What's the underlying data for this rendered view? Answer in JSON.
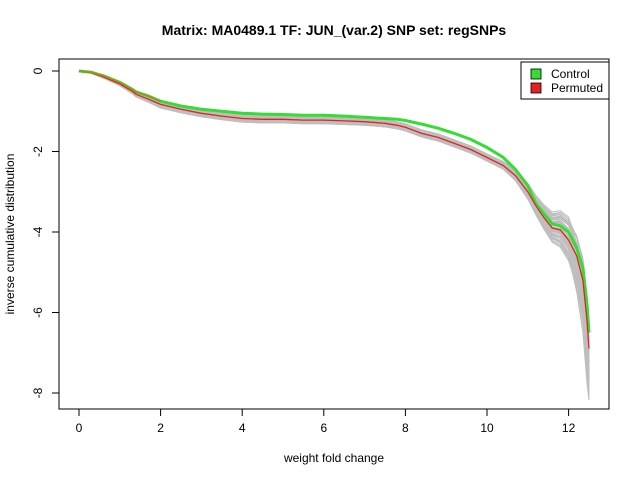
{
  "chart_data": {
    "type": "line",
    "title": "Matrix: MA0489.1 TF: JUN_(var.2) SNP set: regSNPs",
    "xlabel": "weight fold change",
    "ylabel": "inverse cumulative distribution",
    "xlim": [
      0,
      12.5
    ],
    "ylim": [
      -8,
      0
    ],
    "xticks": [
      0,
      2,
      4,
      6,
      8,
      10,
      12
    ],
    "yticks": [
      0,
      -2,
      -4,
      -6,
      -8
    ],
    "grid": false,
    "legend": {
      "position": "top-right",
      "entries": [
        "Control",
        "Permuted"
      ]
    },
    "colors": {
      "Control": "#33dd33",
      "Permuted": "#e62020",
      "background_runs": "#bebebe",
      "overlap_line": "#a09020"
    },
    "series": [
      {
        "name": "Control",
        "x": [
          0.0,
          0.3,
          0.6,
          1.0,
          1.3,
          1.4,
          1.7,
          2.0,
          2.5,
          3.0,
          3.5,
          4.0,
          4.5,
          5.0,
          5.5,
          6.0,
          6.5,
          7.0,
          7.5,
          7.8,
          8.0,
          8.4,
          8.8,
          9.2,
          9.6,
          10.0,
          10.4,
          10.7,
          11.0,
          11.2,
          11.4,
          11.6,
          11.8,
          12.0,
          12.2,
          12.35,
          12.45,
          12.5
        ],
        "y": [
          0.0,
          -0.03,
          -0.12,
          -0.28,
          -0.45,
          -0.52,
          -0.62,
          -0.75,
          -0.87,
          -0.95,
          -1.0,
          -1.05,
          -1.07,
          -1.08,
          -1.1,
          -1.1,
          -1.12,
          -1.15,
          -1.18,
          -1.2,
          -1.23,
          -1.32,
          -1.42,
          -1.55,
          -1.7,
          -1.9,
          -2.15,
          -2.45,
          -2.85,
          -3.3,
          -3.55,
          -3.8,
          -3.85,
          -4.0,
          -4.4,
          -4.9,
          -5.8,
          -6.5
        ]
      },
      {
        "name": "Permuted",
        "x": [
          0.0,
          0.3,
          0.6,
          1.0,
          1.3,
          1.4,
          1.7,
          2.0,
          2.5,
          3.0,
          3.5,
          4.0,
          4.5,
          5.0,
          5.5,
          6.0,
          6.5,
          7.0,
          7.5,
          7.8,
          8.0,
          8.4,
          8.8,
          9.2,
          9.6,
          10.0,
          10.4,
          10.7,
          11.0,
          11.2,
          11.4,
          11.6,
          11.8,
          12.0,
          12.2,
          12.35,
          12.45,
          12.5
        ],
        "y": [
          0.0,
          -0.04,
          -0.15,
          -0.32,
          -0.5,
          -0.58,
          -0.7,
          -0.83,
          -0.95,
          -1.05,
          -1.12,
          -1.18,
          -1.2,
          -1.2,
          -1.22,
          -1.22,
          -1.24,
          -1.26,
          -1.3,
          -1.35,
          -1.4,
          -1.55,
          -1.65,
          -1.8,
          -1.95,
          -2.15,
          -2.35,
          -2.6,
          -3.0,
          -3.35,
          -3.65,
          -3.9,
          -3.95,
          -4.2,
          -4.6,
          -5.2,
          -6.2,
          -6.9
        ]
      }
    ]
  }
}
